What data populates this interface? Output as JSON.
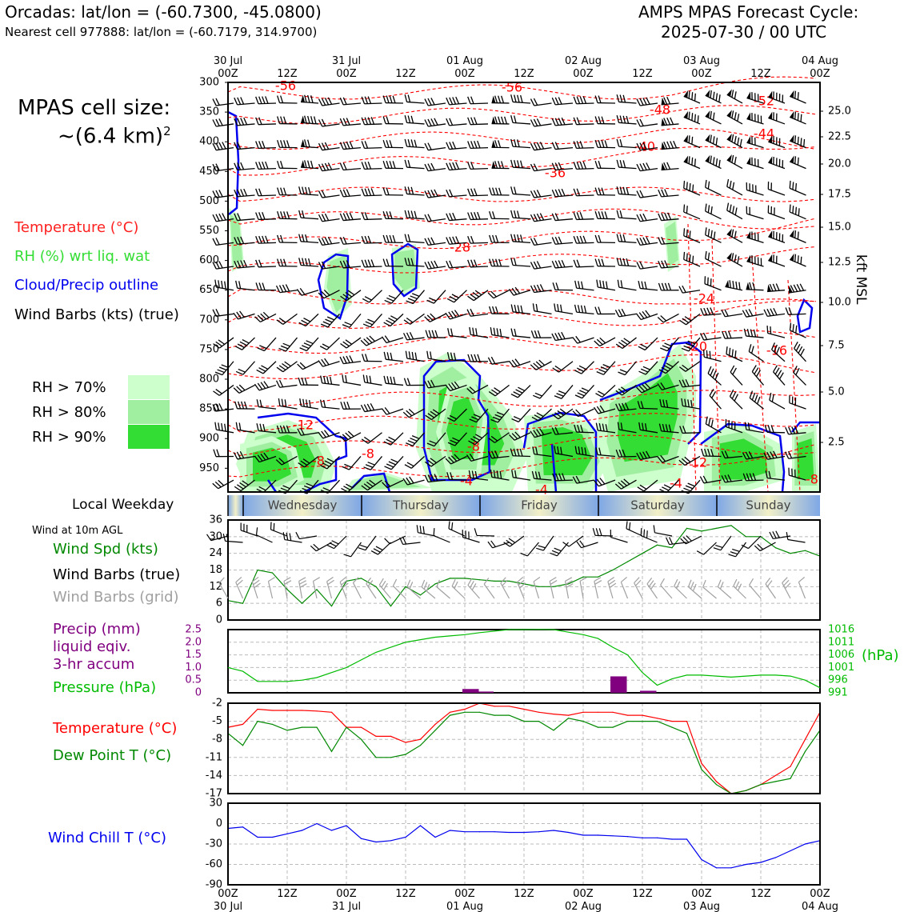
{
  "header": {
    "station": "Orcadas: lat/lon = (-60.7300, -45.0800)",
    "nearest": "Nearest cell 977888: lat/lon = (-60.7179, 314.9700)",
    "cycle_line1": "AMPS MPAS Forecast Cycle:",
    "cycle_line2": "2025-07-30 / 00 UTC"
  },
  "legend": {
    "cell_size_line1": "MPAS cell size:",
    "cell_size_line2": "~(6.4 km)",
    "cell_size_sup": "2",
    "temperature": "Temperature (°C)",
    "rh": "RH (%) wrt liq. wat",
    "cloud": "Cloud/Precip outline",
    "barbs": "Wind Barbs (kts) (true)",
    "rh70": "RH > 70%",
    "rh80": "RH > 80%",
    "rh90": "RH > 90%",
    "local_weekday": "Local Weekday",
    "wind_10m": "Wind at 10m AGL",
    "wind_spd": "Wind Spd (kts)",
    "barbs_true": "Wind Barbs (true)",
    "barbs_grid": "Wind Barbs (grid)",
    "precip1": "Precip (mm)",
    "precip2": "liquid eqiv.",
    "precip3": "3-hr accum",
    "pressure": "Pressure (hPa)",
    "temp2": "Temperature (°C)",
    "dewpt": "Dew Point T (°C)",
    "windchill": "Wind Chill T (°C)"
  },
  "colors": {
    "temp": "#ff0000",
    "rh_label": "#33cc33",
    "cloud": "#0000ee",
    "rh70": "#ccffcc",
    "rh80": "#a0eea0",
    "rh90": "#33dd33",
    "wind_spd": "#008800",
    "barbs_grid": "#a0a0a0",
    "precip": "#800080",
    "pressure": "#00bb00",
    "dewpt": "#008800",
    "windchill": "#0000ee"
  },
  "time_axis": {
    "top_dates": [
      "30 Jul",
      "",
      "31 Jul",
      "",
      "01 Aug",
      "",
      "02 Aug",
      "",
      "03 Aug",
      "",
      "04 Aug"
    ],
    "hours": [
      "00Z",
      "12Z",
      "00Z",
      "12Z",
      "00Z",
      "12Z",
      "00Z",
      "12Z",
      "00Z",
      "12Z",
      "00Z"
    ]
  },
  "weekdays": [
    "Wednesday",
    "Thursday",
    "Friday",
    "Saturday",
    "Sunday"
  ],
  "cross_section": {
    "pressure_levels": [
      "300",
      "350",
      "400",
      "450",
      "500",
      "550",
      "600",
      "650",
      "700",
      "750",
      "800",
      "850",
      "900",
      "950"
    ],
    "right_axis_label": "kft MSL",
    "kft_labels": [
      "25.0",
      "22.5",
      "20.0",
      "17.5",
      "15.0",
      "12.5",
      "10.0",
      "7.5",
      "5.0",
      "2.5"
    ],
    "temp_labels": [
      "-56",
      "-56",
      "-52",
      "-48",
      "-44",
      "-40",
      "-36",
      "-28",
      "-24",
      "-12",
      "-8",
      "-8",
      "-8",
      "-4",
      "-4",
      "-4",
      "-20",
      "-16",
      "-12",
      "-8"
    ]
  },
  "chart_data": [
    {
      "type": "line",
      "title": "Wind at 10m AGL",
      "ylabel": "Wind Spd (kts)",
      "ylim": [
        0,
        36
      ],
      "yticks": [
        "36",
        "30",
        "24",
        "18",
        "12",
        "6",
        "0"
      ],
      "x_hours": [
        0,
        3,
        6,
        9,
        12,
        15,
        18,
        21,
        24,
        27,
        30,
        33,
        36,
        39,
        42,
        45,
        48,
        51,
        54,
        57,
        60,
        63,
        66,
        69,
        72,
        75,
        78,
        81,
        84,
        87,
        90,
        93,
        96,
        99,
        102,
        105,
        108,
        111,
        114,
        117,
        120
      ],
      "series": [
        {
          "name": "Wind Spd (kts)",
          "values": [
            7,
            6,
            18,
            17,
            11,
            6,
            11,
            5,
            14,
            15,
            12,
            5,
            12,
            9,
            13,
            15,
            15,
            14.5,
            14,
            14,
            13,
            12,
            12,
            13,
            15.5,
            15.5,
            18,
            21,
            24,
            27,
            26,
            33,
            32,
            33,
            34,
            30,
            30,
            26,
            24,
            25,
            23
          ]
        }
      ]
    },
    {
      "type": "bar",
      "title": "",
      "ylabel": "Precip (mm)",
      "ylim": [
        0,
        2.5
      ],
      "yticks": [
        "2.5",
        "2.0",
        "1.5",
        "1.0",
        "0.5",
        "0"
      ],
      "x_hours": [
        48,
        51,
        78,
        84
      ],
      "values": [
        0.15,
        0.05,
        0.65,
        0.08
      ]
    },
    {
      "type": "line",
      "title": "",
      "ylabel": "Pressure (hPa)",
      "ylim": [
        991,
        1016
      ],
      "yticks": [
        "1016",
        "1011",
        "1006",
        "1001",
        "996",
        "991"
      ],
      "x_hours": [
        0,
        3,
        6,
        9,
        12,
        15,
        18,
        21,
        24,
        27,
        30,
        33,
        36,
        39,
        42,
        45,
        48,
        51,
        54,
        57,
        60,
        63,
        66,
        69,
        72,
        75,
        78,
        81,
        84,
        87,
        90,
        93,
        96,
        99,
        102,
        105,
        108,
        111,
        114,
        117,
        120
      ],
      "series": [
        {
          "name": "Pressure (hPa)",
          "values": [
            1001,
            999.5,
            995.5,
            995.5,
            995.5,
            996,
            997,
            999,
            1001,
            1004,
            1007,
            1009,
            1011,
            1012,
            1013,
            1013.5,
            1014,
            1014.8,
            1015.4,
            1016,
            1016,
            1016.1,
            1016,
            1015,
            1014,
            1012.5,
            1009,
            1006,
            999,
            994,
            996.5,
            998,
            998,
            997.6,
            997.2,
            997.6,
            998,
            998,
            997.6,
            996,
            993
          ]
        }
      ]
    },
    {
      "type": "line",
      "title": "",
      "ylabel": "Temperature (°C)",
      "ylim": [
        -17,
        -2
      ],
      "yticks": [
        "-2",
        "-5",
        "-8",
        "-11",
        "-14",
        "-17"
      ],
      "x_hours": [
        0,
        3,
        6,
        9,
        12,
        15,
        18,
        21,
        24,
        27,
        30,
        33,
        36,
        39,
        42,
        45,
        48,
        51,
        54,
        57,
        60,
        63,
        66,
        69,
        72,
        75,
        78,
        81,
        84,
        87,
        90,
        93,
        96,
        99,
        102,
        105,
        108,
        111,
        114,
        117,
        120
      ],
      "series": [
        {
          "name": "Temperature (°C)",
          "values": [
            -6,
            -5.5,
            -3,
            -3.2,
            -3.2,
            -3.2,
            -3.3,
            -3.5,
            -6,
            -6,
            -7.5,
            -7.5,
            -8.5,
            -8,
            -5.5,
            -3.5,
            -3,
            -2,
            -2.5,
            -2.5,
            -3,
            -3.5,
            -3.8,
            -4,
            -3.5,
            -3.5,
            -3.5,
            -4,
            -4,
            -4.5,
            -5,
            -5,
            -12,
            -15,
            -17,
            -16.5,
            -15.5,
            -14,
            -12.5,
            -8,
            -3.5
          ]
        },
        {
          "name": "Dew Point T (°C)",
          "values": [
            -7,
            -9,
            -5,
            -5.5,
            -6.5,
            -6,
            -6,
            -10,
            -6,
            -8,
            -11,
            -11,
            -10.5,
            -9,
            -6.5,
            -4,
            -3.5,
            -3.5,
            -4,
            -4,
            -5,
            -5,
            -6.5,
            -4.5,
            -5,
            -6,
            -6,
            -5,
            -5,
            -5,
            -6,
            -7,
            -13,
            -15.5,
            -17,
            -16.5,
            -15.5,
            -15,
            -14.5,
            -10,
            -6.5
          ]
        }
      ]
    },
    {
      "type": "line",
      "title": "",
      "ylabel": "Wind Chill T (°C)",
      "ylim": [
        -90,
        30
      ],
      "yticks": [
        "30",
        "0",
        "-30",
        "-60",
        "-90"
      ],
      "x_hours": [
        0,
        3,
        6,
        9,
        12,
        15,
        18,
        21,
        24,
        27,
        30,
        33,
        36,
        39,
        42,
        45,
        48,
        51,
        54,
        57,
        60,
        63,
        66,
        69,
        72,
        75,
        78,
        81,
        84,
        87,
        90,
        93,
        96,
        99,
        102,
        105,
        108,
        111,
        114,
        117,
        120
      ],
      "series": [
        {
          "name": "Wind Chill T (°C)",
          "values": [
            -7,
            -5,
            -20,
            -20,
            -15,
            -10,
            0,
            -10,
            -3,
            -22,
            -27,
            -25,
            -20,
            -3,
            -20,
            -10,
            -12,
            -12,
            -12,
            -13,
            -13,
            -12,
            -10,
            -13,
            -17,
            -17,
            -18,
            -19,
            -21,
            -21,
            -23,
            -23,
            -53,
            -65,
            -65,
            -60,
            -57,
            -50,
            -40,
            -30,
            -25
          ]
        }
      ]
    }
  ]
}
